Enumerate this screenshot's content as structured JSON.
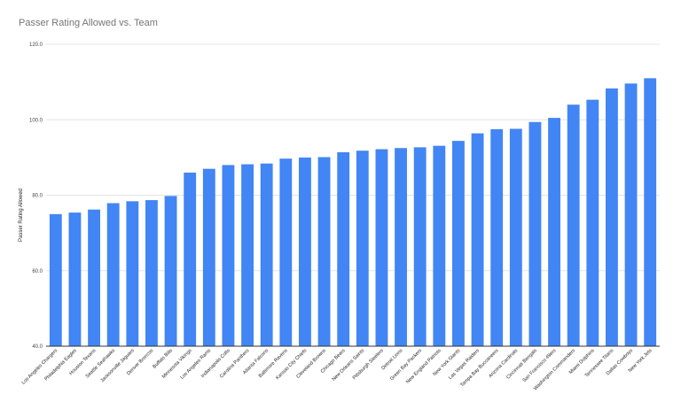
{
  "chart_data": {
    "type": "bar",
    "title": "Passer Rating Allowed vs. Team",
    "xlabel": "",
    "ylabel": "Passer Rating Allowed",
    "ylim": [
      40,
      120
    ],
    "yticks": [
      "40.0",
      "60.0",
      "80.0",
      "100.0",
      "120.0"
    ],
    "grid": true,
    "bar_color": "#4285f4",
    "categories": [
      "Los Angeles Chargers",
      "Philadelphia Eagles",
      "Houston Texans",
      "Seattle Seahawks",
      "Jacksonville Jaguars",
      "Denver Broncos",
      "Buffalo Bills",
      "Minnesota Vikings",
      "Los Angeles Rams",
      "Indianapolis Colts",
      "Carolina Panthers",
      "Atlanta Falcons",
      "Baltimore Ravens",
      "Kansas City Chiefs",
      "Cleveland Browns",
      "Chicago Bears",
      "New Orleans Saints",
      "Pittsburgh Steelers",
      "Detroit Lions",
      "Green Bay Packers",
      "New England Patriots",
      "New York Giants",
      "Las Vegas Raiders",
      "Tampa Bay Buccaneers",
      "Arizona Cardinals",
      "Cincinnati Bengals",
      "San Francisco 49ers",
      "Washington Commanders",
      "Miami Dolphins",
      "Tennessee Titans",
      "Dallas Cowboys",
      "New York Jets"
    ],
    "values": [
      75.0,
      75.4,
      76.2,
      77.9,
      78.4,
      78.7,
      79.8,
      86.0,
      87.0,
      88.0,
      88.2,
      88.4,
      89.7,
      90.0,
      90.1,
      91.4,
      91.8,
      92.2,
      92.5,
      92.7,
      93.1,
      94.4,
      96.4,
      97.5,
      97.6,
      99.4,
      100.5,
      104.0,
      105.3,
      108.3,
      109.6,
      111.0
    ]
  }
}
